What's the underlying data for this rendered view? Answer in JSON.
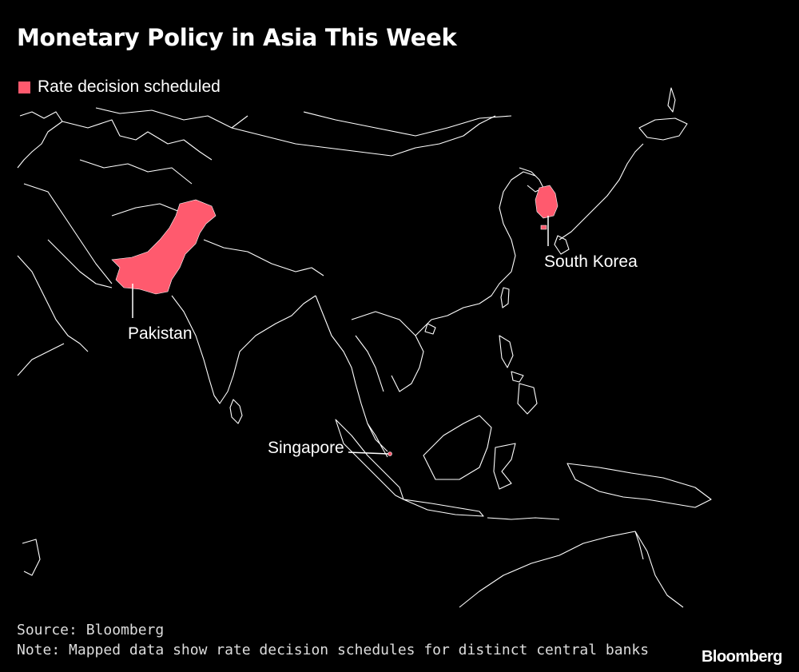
{
  "title": "Monetary Policy in Asia This Week",
  "legend": {
    "label": "Rate decision scheduled",
    "color": "#ff5a6e"
  },
  "labels": {
    "pakistan": "Pakistan",
    "south_korea": "South Korea",
    "singapore": "Singapore"
  },
  "source": "Source: Bloomberg",
  "note": "Note: Mapped data show rate decision schedules for distinct central banks",
  "brand": "Bloomberg",
  "colors": {
    "background": "#000000",
    "border": "#ffffff",
    "highlight": "#ff5a6e"
  }
}
